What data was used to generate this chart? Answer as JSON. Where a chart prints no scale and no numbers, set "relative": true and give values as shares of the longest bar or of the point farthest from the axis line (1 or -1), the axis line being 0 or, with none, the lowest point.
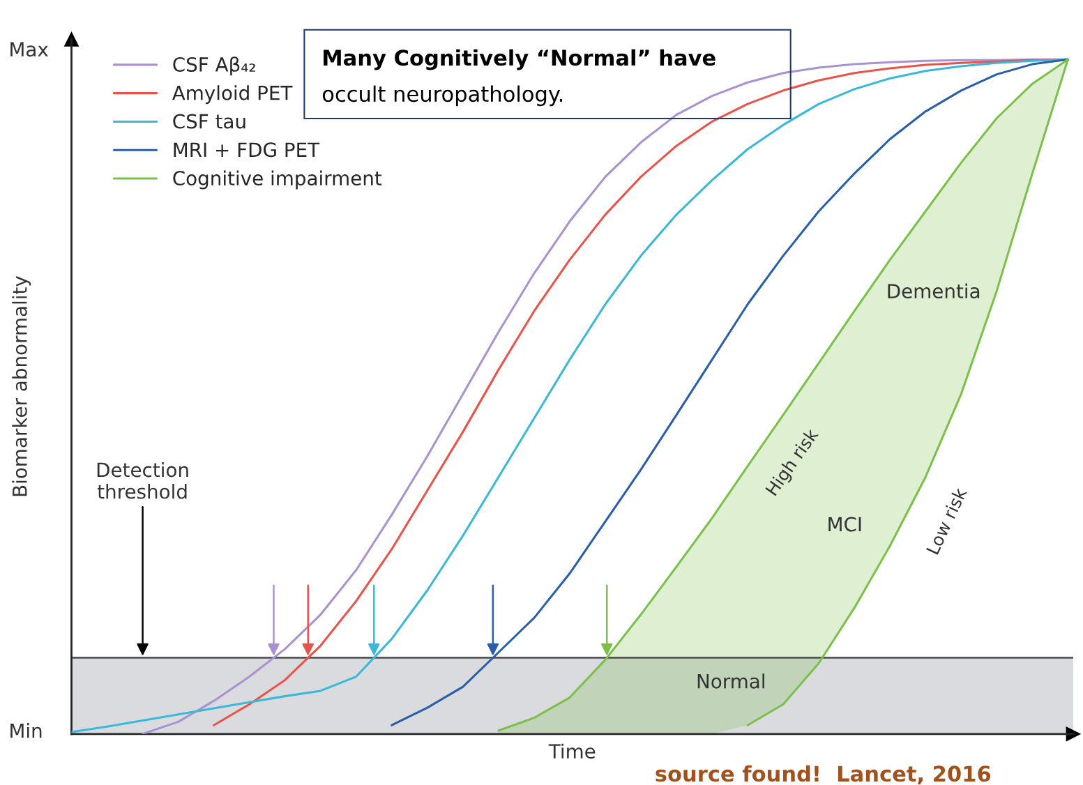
{
  "chart_data": {
    "type": "line",
    "xlabel": "Time",
    "ylabel": "Biomarker abnormality",
    "categories": [
      null,
      null,
      null,
      null,
      null,
      null,
      null,
      null,
      null,
      null,
      null,
      null,
      null,
      null,
      null,
      null,
      null,
      null,
      null,
      null,
      null,
      null,
      null,
      null,
      null,
      null,
      null,
      null,
      null
    ],
    "relative": true,
    "tick_labels": false,
    "legend": "top left",
    "marker": "none",
    "line_style": "solid",
    "series": [
      {
        "name": "CSF Aβ₄₂",
        "color": "#a992d0",
        "values": [
          null,
          null,
          0.0,
          0.018,
          0.049,
          0.085,
          0.126,
          0.177,
          0.243,
          0.325,
          0.412,
          0.504,
          0.596,
          0.683,
          0.76,
          0.826,
          0.877,
          0.918,
          0.946,
          0.966,
          0.98,
          0.988,
          0.993,
          0.996,
          0.998,
          0.999,
          0.999,
          1.0,
          1.0
        ]
      },
      {
        "name": "Amyloid PET",
        "color": "#e8534a",
        "values": [
          null,
          null,
          null,
          null,
          0.013,
          0.044,
          0.08,
          0.131,
          0.197,
          0.274,
          0.361,
          0.448,
          0.54,
          0.627,
          0.703,
          0.77,
          0.826,
          0.872,
          0.908,
          0.934,
          0.954,
          0.969,
          0.98,
          0.987,
          0.992,
          0.995,
          0.997,
          0.999,
          1.0
        ]
      },
      {
        "name": "CSF tau",
        "color": "#3bb8d8",
        "values": [
          0.003,
          0.011,
          0.02,
          0.029,
          0.038,
          0.047,
          0.056,
          0.064,
          0.085,
          0.141,
          0.213,
          0.294,
          0.381,
          0.468,
          0.555,
          0.637,
          0.709,
          0.77,
          0.821,
          0.867,
          0.903,
          0.934,
          0.956,
          0.972,
          0.983,
          0.99,
          0.995,
          0.998,
          1.0
        ]
      },
      {
        "name": "MRI + FDG PET",
        "color": "#2a5ea8",
        "values": [
          null,
          null,
          null,
          null,
          null,
          null,
          null,
          null,
          null,
          0.013,
          0.039,
          0.07,
          0.121,
          0.172,
          0.238,
          0.315,
          0.392,
          0.473,
          0.555,
          0.637,
          0.709,
          0.775,
          0.831,
          0.882,
          0.923,
          0.954,
          0.978,
          0.993,
          1.0
        ]
      },
      {
        "name": "Cognitive impairment",
        "color": "#7cc04b",
        "values": [
          null,
          null,
          null,
          null,
          null,
          null,
          null,
          null,
          null,
          null,
          null,
          null,
          0.005,
          0.024,
          0.054,
          0.11,
          0.177,
          0.248,
          0.32,
          0.397,
          0.473,
          0.55,
          0.627,
          0.703,
          0.775,
          0.847,
          0.913,
          0.964,
          1.0
        ],
        "lower": [
          null,
          null,
          null,
          null,
          null,
          null,
          null,
          null,
          null,
          null,
          null,
          null,
          0,
          0,
          0,
          0,
          0,
          0,
          0,
          0.013,
          0.044,
          0.105,
          0.187,
          0.279,
          0.381,
          0.504,
          0.657,
          0.831,
          1.0
        ],
        "upper": [
          null,
          null,
          null,
          null,
          null,
          null,
          null,
          null,
          null,
          null,
          null,
          null,
          0.005,
          0.024,
          0.054,
          0.11,
          0.177,
          0.248,
          0.32,
          0.397,
          0.473,
          0.55,
          0.627,
          0.703,
          0.775,
          0.847,
          0.913,
          0.964,
          1.0
        ]
      },
      {
        "color": "#7cc04b",
        "values": [
          null,
          null,
          null,
          null,
          null,
          null,
          null,
          null,
          null,
          null,
          null,
          null,
          null,
          null,
          null,
          null,
          null,
          null,
          null,
          0.013,
          0.044,
          0.105,
          0.187,
          0.279,
          0.381,
          0.504,
          0.657,
          0.831,
          1.0
        ]
      }
    ],
    "ref_lines": [
      {
        "axis": "y",
        "value": 0.113,
        "label": "Detection\nthreshold",
        "color": "#555555"
      }
    ],
    "bands": [
      {
        "axis": "y",
        "from": 0,
        "to": 0.113,
        "color": "#d9dbde"
      }
    ],
    "annotations": [
      "Many Cognitively “Normal” have",
      "occult neuropathology.",
      "Dementia",
      "MCI",
      "Normal",
      "High risk",
      "Low risk",
      "source found!  Lancet, 2016",
      "Max",
      "Min"
    ]
  }
}
